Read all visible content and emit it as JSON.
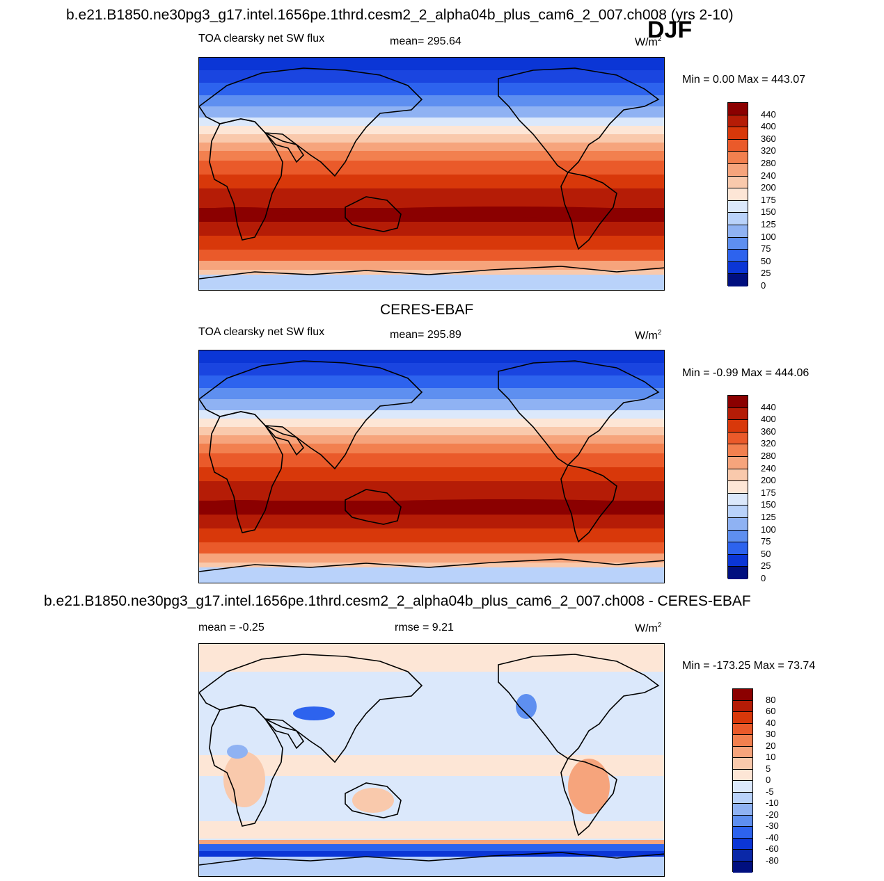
{
  "main_title": "b.e21.B1850.ne30pg3_g17.intel.1656pe.1thrd.cesm2_2_alpha04b_plus_cam6_2_007.ch008 (yrs 2-10)",
  "season": "DJF",
  "unit_base": "W/m",
  "unit_exp": "2",
  "panels": [
    {
      "id": "model",
      "heading": "",
      "variable": "TOA clearsky net SW flux",
      "stat_text": "mean= 295.64",
      "minmax": "Min =   0.00 Max = 443.07",
      "colorbar_labels": [
        "440",
        "400",
        "360",
        "320",
        "280",
        "240",
        "200",
        "175",
        "150",
        "125",
        "100",
        "75",
        "50",
        "25",
        "0"
      ]
    },
    {
      "id": "obs",
      "heading": "CERES-EBAF",
      "variable": "TOA clearsky net SW flux",
      "stat_text": "mean= 295.89",
      "minmax": "Min =  -0.99 Max = 444.06",
      "colorbar_labels": [
        "440",
        "400",
        "360",
        "320",
        "280",
        "240",
        "200",
        "175",
        "150",
        "125",
        "100",
        "75",
        "50",
        "25",
        "0"
      ]
    },
    {
      "id": "diff",
      "heading": "b.e21.B1850.ne30pg3_g17.intel.1656pe.1thrd.cesm2_2_alpha04b_plus_cam6_2_007.ch008 - CERES-EBAF",
      "variable": "mean =  -0.25",
      "stat_text": "rmse =   9.21",
      "minmax": "Min = -173.25 Max =  73.74",
      "colorbar_labels": [
        "80",
        "60",
        "40",
        "30",
        "20",
        "10",
        "5",
        "0",
        "-5",
        "-10",
        "-20",
        "-30",
        "-40",
        "-60",
        "-80"
      ]
    }
  ],
  "colors": {
    "flux_scale": [
      "#8b0000",
      "#b51c06",
      "#d8380a",
      "#ea5a2a",
      "#f2804f",
      "#f6a47c",
      "#f9c9ac",
      "#fde6d6",
      "#dbe8fb",
      "#b9d2fa",
      "#8fb2f3",
      "#5e8ff0",
      "#2d63ee",
      "#0b36d6",
      "#000f7f"
    ],
    "diff_scale": [
      "#8b0000",
      "#b51c06",
      "#d8380a",
      "#ea5a2a",
      "#f2804f",
      "#f6a47c",
      "#f9c9ac",
      "#fde6d6",
      "#dbe8fb",
      "#b9d2fa",
      "#8fb2f3",
      "#5e8ff0",
      "#2d63ee",
      "#0b36d6",
      "#0a28a8",
      "#000f7f"
    ]
  }
}
